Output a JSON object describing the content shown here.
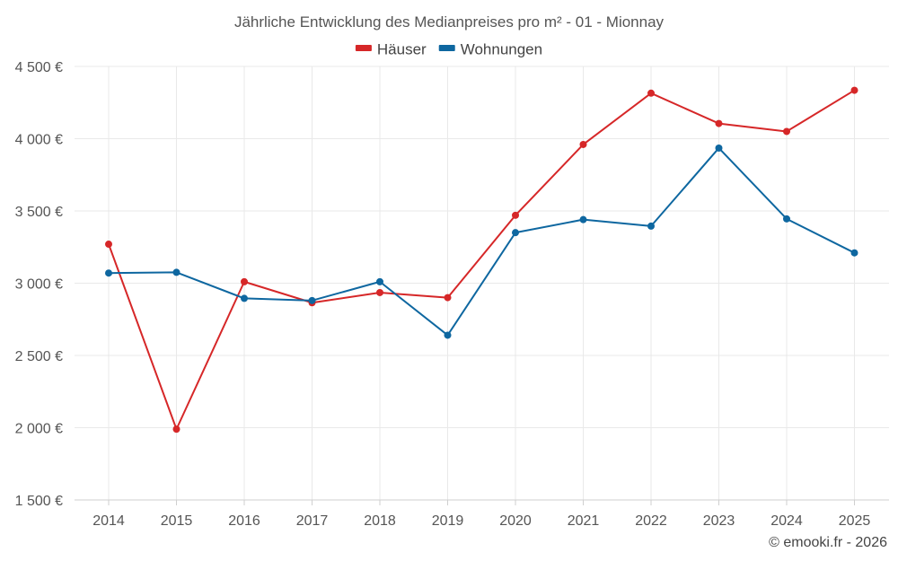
{
  "chart_data": {
    "type": "line",
    "title": "Jährliche Entwicklung des Medianpreises pro m² - 01 - Mionnay",
    "categories": [
      "2014",
      "2015",
      "2016",
      "2017",
      "2018",
      "2019",
      "2020",
      "2021",
      "2022",
      "2023",
      "2024",
      "2025"
    ],
    "series": [
      {
        "name": "Häuser",
        "color": "#d62728",
        "values": [
          3270,
          1990,
          3010,
          2865,
          2935,
          2900,
          3470,
          3960,
          4315,
          4105,
          4050,
          4335
        ]
      },
      {
        "name": "Wohnungen",
        "color": "#0e67a0",
        "values": [
          3070,
          3075,
          2895,
          2880,
          3010,
          2640,
          3350,
          3440,
          3395,
          3935,
          3445,
          3210
        ]
      }
    ],
    "ylim": [
      1500,
      4500
    ],
    "yticks": [
      1500,
      2000,
      2500,
      3000,
      3500,
      4000,
      4500
    ],
    "ytick_labels": [
      "1 500 €",
      "2 000 €",
      "2 500 €",
      "3 000 €",
      "3 500 €",
      "4 000 €",
      "4 500 €"
    ],
    "xlabel": "",
    "ylabel": "",
    "grid": true,
    "legend_position": "top-center",
    "credit": "© emooki.fr - 2026"
  }
}
